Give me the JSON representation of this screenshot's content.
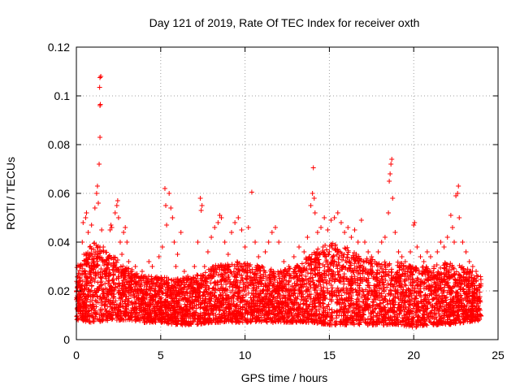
{
  "chart_data": {
    "type": "scatter",
    "title": "Day 121 of 2019, Rate Of TEC Index for receiver oxth",
    "xlabel": "GPS time / hours",
    "ylabel": "ROTI / TECUs",
    "xlim": [
      0,
      25
    ],
    "ylim": [
      0,
      0.12
    ],
    "x_ticks": [
      0,
      5,
      10,
      15,
      20,
      25
    ],
    "x_tick_labels": [
      "0",
      "5",
      "10",
      "15",
      "20",
      "25"
    ],
    "y_ticks": [
      0,
      0.02,
      0.04,
      0.06,
      0.08,
      0.1,
      0.12
    ],
    "y_tick_labels": [
      "0",
      "0.02",
      "0.04",
      "0.06",
      "0.08",
      "0.1",
      "0.12"
    ],
    "grid": true,
    "marker": "+",
    "series": [
      {
        "name": "ROTI",
        "color": "#ff0000",
        "points": [
          [
            0.1,
            0.012
          ],
          [
            0.15,
            0.018
          ],
          [
            0.2,
            0.025
          ],
          [
            0.25,
            0.03
          ],
          [
            0.3,
            0.022
          ],
          [
            0.35,
            0.04
          ],
          [
            0.4,
            0.048
          ],
          [
            0.45,
            0.035
          ],
          [
            0.5,
            0.028
          ],
          [
            0.55,
            0.05
          ],
          [
            0.6,
            0.052
          ],
          [
            0.65,
            0.032
          ],
          [
            0.7,
            0.044
          ],
          [
            0.8,
            0.038
          ],
          [
            0.9,
            0.047
          ],
          [
            1.0,
            0.03
          ],
          [
            1.1,
            0.054
          ],
          [
            1.2,
            0.06
          ],
          [
            1.25,
            0.063
          ],
          [
            1.3,
            0.056
          ],
          [
            1.35,
            0.072
          ],
          [
            1.4,
            0.083
          ],
          [
            1.4,
            0.096
          ],
          [
            1.42,
            0.0965
          ],
          [
            1.38,
            0.1035
          ],
          [
            1.4,
            0.1075
          ],
          [
            1.45,
            0.108
          ],
          [
            1.5,
            0.045
          ],
          [
            1.6,
            0.038
          ],
          [
            1.7,
            0.032
          ],
          [
            1.8,
            0.028
          ],
          [
            1.9,
            0.034
          ],
          [
            2.0,
            0.045
          ],
          [
            2.05,
            0.047
          ],
          [
            2.1,
            0.046
          ],
          [
            2.2,
            0.03
          ],
          [
            2.3,
            0.052
          ],
          [
            2.4,
            0.055
          ],
          [
            2.45,
            0.057
          ],
          [
            2.5,
            0.05
          ],
          [
            2.6,
            0.04
          ],
          [
            2.7,
            0.035
          ],
          [
            2.8,
            0.044
          ],
          [
            2.9,
            0.046
          ],
          [
            3.0,
            0.04
          ],
          [
            3.1,
            0.032
          ],
          [
            3.3,
            0.028
          ],
          [
            3.5,
            0.03
          ],
          [
            3.7,
            0.024
          ],
          [
            3.9,
            0.028
          ],
          [
            4.1,
            0.026
          ],
          [
            4.3,
            0.032
          ],
          [
            4.5,
            0.03
          ],
          [
            4.7,
            0.022
          ],
          [
            4.9,
            0.034
          ],
          [
            5.1,
            0.038
          ],
          [
            5.25,
            0.062
          ],
          [
            5.3,
            0.055
          ],
          [
            5.35,
            0.047
          ],
          [
            5.5,
            0.06
          ],
          [
            5.6,
            0.054
          ],
          [
            5.7,
            0.05
          ],
          [
            5.8,
            0.04
          ],
          [
            5.9,
            0.03
          ],
          [
            6.0,
            0.035
          ],
          [
            6.2,
            0.044
          ],
          [
            6.4,
            0.028
          ],
          [
            6.6,
            0.026
          ],
          [
            6.8,
            0.024
          ],
          [
            7.0,
            0.03
          ],
          [
            7.2,
            0.04
          ],
          [
            7.35,
            0.058
          ],
          [
            7.4,
            0.053
          ],
          [
            7.45,
            0.055
          ],
          [
            7.6,
            0.03
          ],
          [
            7.8,
            0.036
          ],
          [
            8.0,
            0.042
          ],
          [
            8.2,
            0.046
          ],
          [
            8.4,
            0.048
          ],
          [
            8.5,
            0.051
          ],
          [
            8.6,
            0.05
          ],
          [
            8.8,
            0.04
          ],
          [
            9.0,
            0.035
          ],
          [
            9.2,
            0.044
          ],
          [
            9.4,
            0.048
          ],
          [
            9.6,
            0.05
          ],
          [
            9.8,
            0.045
          ],
          [
            10.0,
            0.038
          ],
          [
            10.2,
            0.046
          ],
          [
            10.4,
            0.0605
          ],
          [
            10.6,
            0.04
          ],
          [
            10.8,
            0.034
          ],
          [
            11.0,
            0.03
          ],
          [
            11.2,
            0.036
          ],
          [
            11.4,
            0.04
          ],
          [
            11.6,
            0.044
          ],
          [
            11.8,
            0.046
          ],
          [
            12.0,
            0.04
          ],
          [
            12.3,
            0.032
          ],
          [
            12.6,
            0.03
          ],
          [
            12.9,
            0.034
          ],
          [
            13.2,
            0.038
          ],
          [
            13.5,
            0.036
          ],
          [
            13.7,
            0.042
          ],
          [
            13.9,
            0.055
          ],
          [
            14.0,
            0.06
          ],
          [
            14.05,
            0.0705
          ],
          [
            14.1,
            0.058
          ],
          [
            14.15,
            0.052
          ],
          [
            14.3,
            0.044
          ],
          [
            14.5,
            0.046
          ],
          [
            14.7,
            0.05
          ],
          [
            14.9,
            0.045
          ],
          [
            15.1,
            0.049
          ],
          [
            15.3,
            0.05
          ],
          [
            15.5,
            0.052
          ],
          [
            15.7,
            0.048
          ],
          [
            15.9,
            0.044
          ],
          [
            16.1,
            0.046
          ],
          [
            16.3,
            0.042
          ],
          [
            16.5,
            0.045
          ],
          [
            16.7,
            0.04
          ],
          [
            16.9,
            0.049
          ],
          [
            17.1,
            0.04
          ],
          [
            17.3,
            0.036
          ],
          [
            17.5,
            0.034
          ],
          [
            17.7,
            0.032
          ],
          [
            17.9,
            0.036
          ],
          [
            18.1,
            0.04
          ],
          [
            18.3,
            0.042
          ],
          [
            18.5,
            0.052
          ],
          [
            18.55,
            0.065
          ],
          [
            18.6,
            0.068
          ],
          [
            18.65,
            0.072
          ],
          [
            18.7,
            0.074
          ],
          [
            18.75,
            0.058
          ],
          [
            18.9,
            0.044
          ],
          [
            19.1,
            0.036
          ],
          [
            19.3,
            0.034
          ],
          [
            19.5,
            0.032
          ],
          [
            19.8,
            0.036
          ],
          [
            20.0,
            0.047
          ],
          [
            20.05,
            0.048
          ],
          [
            20.2,
            0.038
          ],
          [
            20.4,
            0.034
          ],
          [
            20.6,
            0.032
          ],
          [
            20.8,
            0.036
          ],
          [
            21.0,
            0.034
          ],
          [
            21.2,
            0.03
          ],
          [
            21.4,
            0.036
          ],
          [
            21.6,
            0.04
          ],
          [
            21.8,
            0.038
          ],
          [
            22.0,
            0.042
          ],
          [
            22.2,
            0.051
          ],
          [
            22.3,
            0.046
          ],
          [
            22.4,
            0.04
          ],
          [
            22.5,
            0.059
          ],
          [
            22.6,
            0.06
          ],
          [
            22.65,
            0.063
          ],
          [
            22.7,
            0.05
          ],
          [
            22.9,
            0.04
          ],
          [
            23.1,
            0.036
          ],
          [
            23.3,
            0.032
          ],
          [
            23.5,
            0.03
          ],
          [
            23.7,
            0.028
          ],
          [
            23.8,
            0.026
          ]
        ],
        "bulk_envelope": {
          "hours": [
            0.0,
            1.0,
            2.0,
            3.0,
            4.0,
            5.0,
            6.0,
            7.0,
            8.0,
            9.0,
            10.0,
            11.0,
            12.0,
            13.0,
            14.0,
            15.0,
            16.0,
            17.0,
            18.0,
            19.0,
            20.0,
            21.0,
            22.0,
            23.0,
            24.0
          ],
          "lower": [
            0.008,
            0.007,
            0.008,
            0.008,
            0.007,
            0.007,
            0.006,
            0.006,
            0.007,
            0.007,
            0.007,
            0.007,
            0.007,
            0.007,
            0.007,
            0.006,
            0.006,
            0.006,
            0.006,
            0.006,
            0.005,
            0.006,
            0.006,
            0.007,
            0.008
          ],
          "upper": [
            0.03,
            0.04,
            0.036,
            0.03,
            0.026,
            0.026,
            0.025,
            0.026,
            0.03,
            0.032,
            0.032,
            0.03,
            0.028,
            0.03,
            0.036,
            0.04,
            0.038,
            0.034,
            0.032,
            0.032,
            0.03,
            0.03,
            0.032,
            0.03,
            0.026
          ]
        }
      }
    ]
  }
}
